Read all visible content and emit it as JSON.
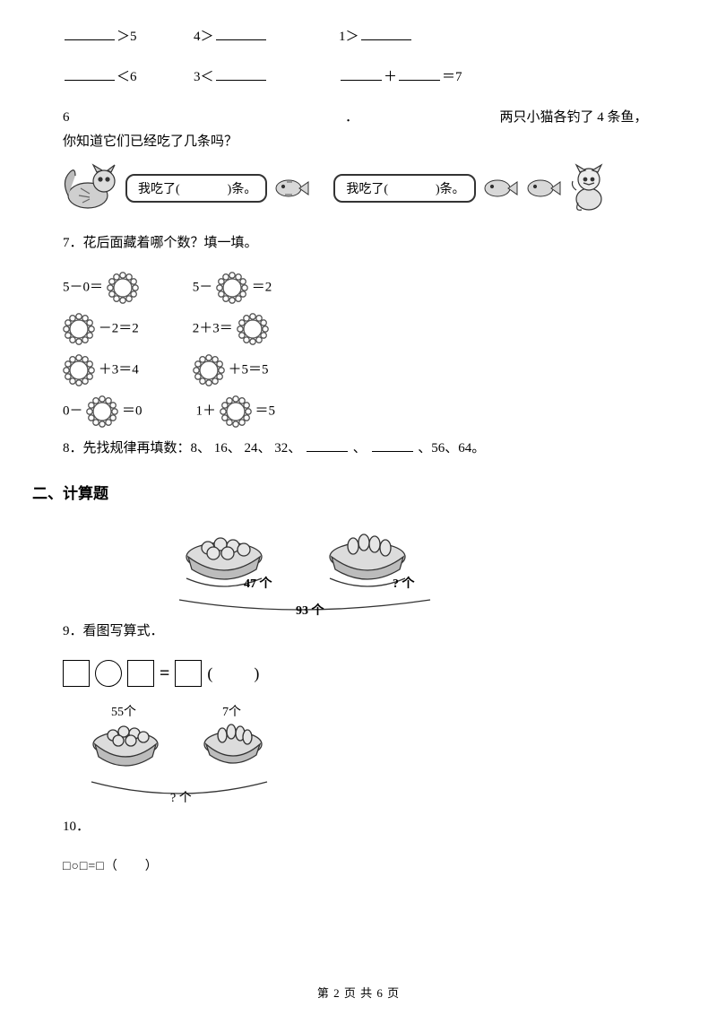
{
  "q_blanks_row1": {
    "a_suffix": "＞5",
    "b_prefix": "4＞",
    "c_prefix": "1＞"
  },
  "q_blanks_row2": {
    "a_suffix": "＜6",
    "b_prefix": "3＜",
    "c_mid": "＋",
    "c_suffix": "＝7"
  },
  "q6": {
    "number": "6",
    "dot": "．",
    "text": "两只小猫各钓了 4 条鱼，你知道它们已经吃了几条吗？",
    "bubble_left_a": "我吃了(",
    "bubble_left_b": ")条。",
    "bubble_right_a": "我吃了(",
    "bubble_right_b": ")条。"
  },
  "q7": {
    "title": "7．花后面藏着哪个数？填一填。",
    "r1a": "5－0＝",
    "r1b_pre": "5－",
    "r1b_suf": "＝2",
    "r2a_suf": "－2＝2",
    "r2b": "2＋3＝",
    "r3a_suf": "＋3＝4",
    "r3b_suf": "＋5＝5",
    "r4a_pre": "0－",
    "r4a_suf": "＝0",
    "r4b_pre": "1＋",
    "r4b_suf": "＝5"
  },
  "q8": {
    "text_a": "8．先找规律再填数：8、 16、 24、 32、",
    "sep": "、",
    "text_b": "、56、64。"
  },
  "section2": "二、计算题",
  "q9": {
    "fig": {
      "left_label": "47 个",
      "right_label": "? 个",
      "total_label": "93 个"
    },
    "title": "9．看图写算式．",
    "eq_eq": "=",
    "eq_paren_l": "(",
    "eq_paren_r": ")"
  },
  "q10": {
    "fig": {
      "left_label": "55个",
      "right_label": "7个",
      "total_label": "? 个"
    },
    "title": "10．",
    "eq": "□○□=□（　　）"
  },
  "footer": {
    "a": "第",
    "b": "2",
    "c": "页 共",
    "d": "6",
    "e": "页"
  },
  "style": {
    "stroke": "#333333",
    "fill_gray": "#bdbdbd",
    "fill_light": "#efefef"
  }
}
